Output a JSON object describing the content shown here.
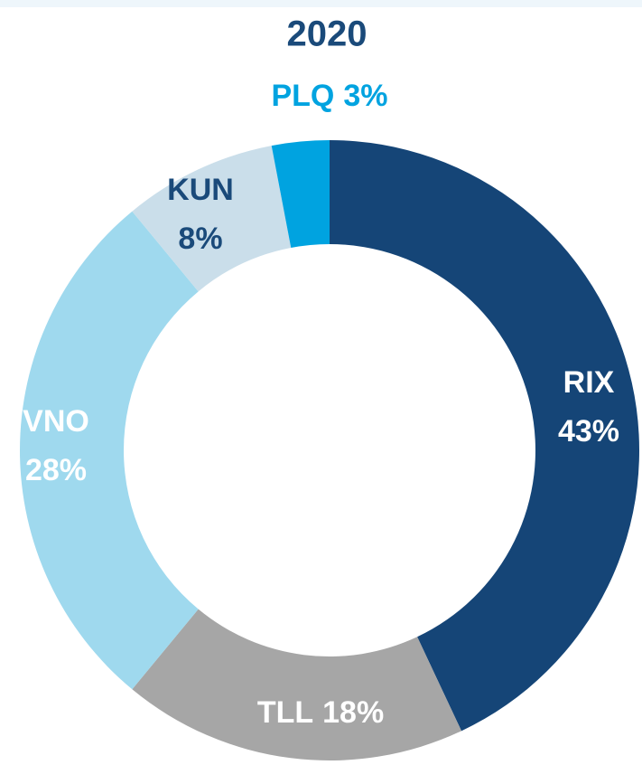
{
  "chart_data": {
    "type": "donut",
    "title": "2020",
    "categories": [
      "RIX",
      "TLL",
      "VNO",
      "KUN",
      "PLQ"
    ],
    "values": [
      43,
      18,
      28,
      8,
      3
    ],
    "value_labels": [
      "43%",
      "18%",
      "28%",
      "8%",
      "3%"
    ],
    "colors": [
      "#154577",
      "#a6a6a6",
      "#9fd9ee",
      "#cadeea",
      "#00a3e0"
    ]
  }
}
